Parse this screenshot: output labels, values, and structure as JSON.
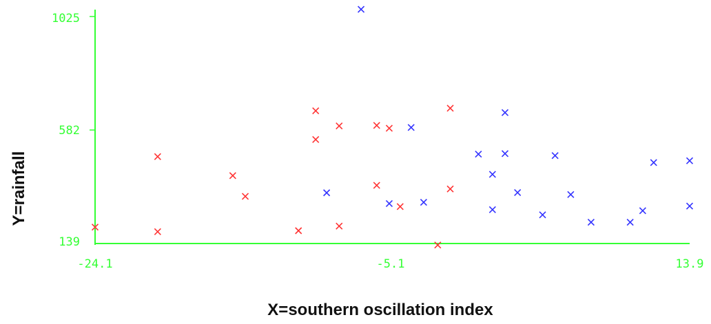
{
  "chart_data": {
    "type": "scatter",
    "xlabel": "X=southern oscillation index",
    "ylabel": "Y=rainfall",
    "xlim": [
      -24.1,
      13.9
    ],
    "ylim": [
      139,
      1025
    ],
    "x_ticks": [
      "-24.1",
      "-5.1",
      "13.9"
    ],
    "y_ticks": [
      "1025",
      "582",
      "139"
    ],
    "grid": false,
    "axis_color": "#33ff33",
    "series": [
      {
        "color": "#ff3333",
        "points": [
          [
            -24.1,
            203
          ],
          [
            -20.1,
            185
          ],
          [
            -20.1,
            478
          ],
          [
            -15.3,
            404
          ],
          [
            -14.5,
            323
          ],
          [
            -11.1,
            189
          ],
          [
            -10.0,
            657
          ],
          [
            -10.0,
            545
          ],
          [
            -8.5,
            598
          ],
          [
            -8.5,
            207
          ],
          [
            -6.1,
            600
          ],
          [
            -6.1,
            366
          ],
          [
            -5.3,
            589
          ],
          [
            -4.6,
            283
          ],
          [
            -2.2,
            133
          ],
          [
            -1.4,
            667
          ],
          [
            -1.4,
            352
          ]
        ]
      },
      {
        "color": "#3333ff",
        "points": [
          [
            -7.1,
            1053
          ],
          [
            -9.3,
            337
          ],
          [
            -5.3,
            295
          ],
          [
            -3.9,
            592
          ],
          [
            -3.1,
            300
          ],
          [
            0.4,
            488
          ],
          [
            1.3,
            409
          ],
          [
            1.3,
            271
          ],
          [
            2.1,
            490
          ],
          [
            2.1,
            650
          ],
          [
            2.9,
            338
          ],
          [
            4.5,
            251
          ],
          [
            5.3,
            482
          ],
          [
            6.3,
            330
          ],
          [
            7.6,
            222
          ],
          [
            10.1,
            222
          ],
          [
            10.9,
            267
          ],
          [
            11.6,
            455
          ],
          [
            13.9,
            462
          ],
          [
            13.9,
            285
          ]
        ]
      }
    ]
  }
}
